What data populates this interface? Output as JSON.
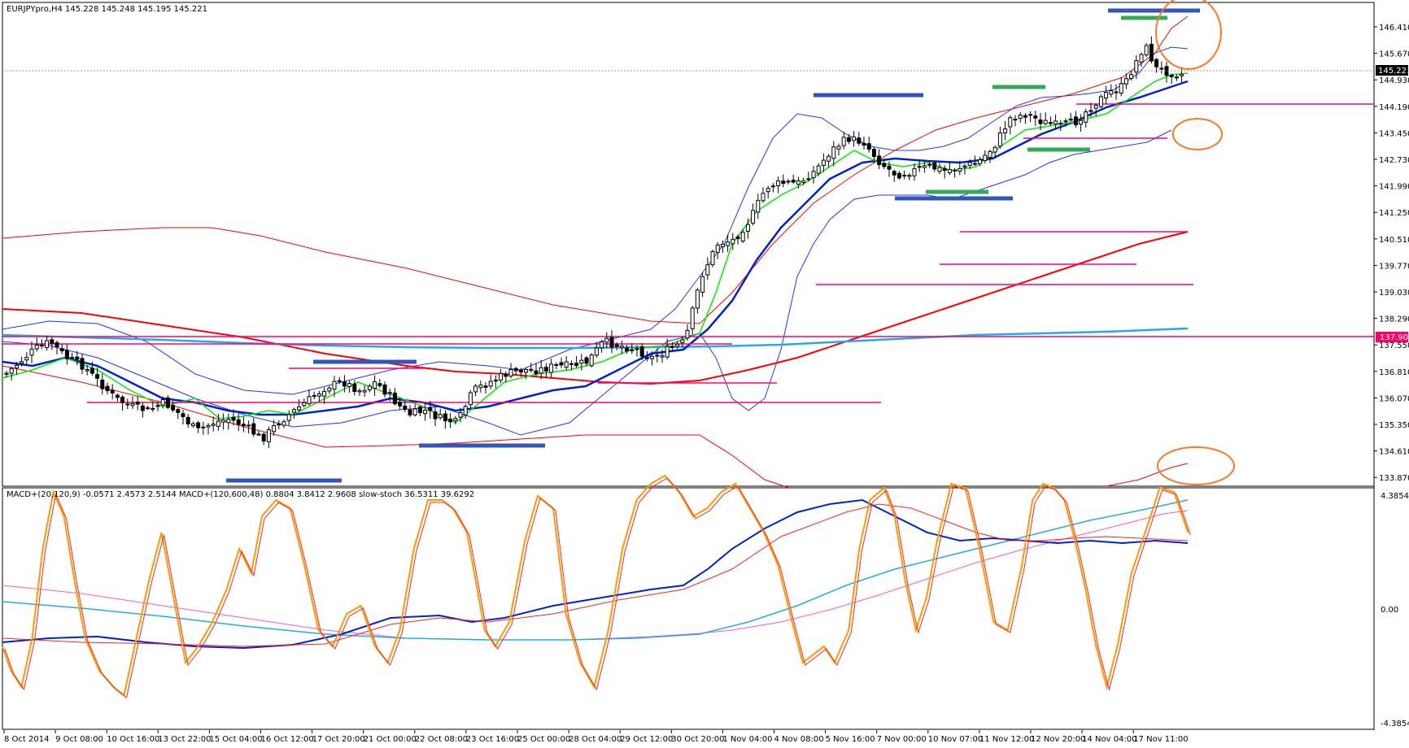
{
  "window": {
    "symbol_header": "EURJPYpro,H4  145.228 145.248 145.195 145.221"
  },
  "indicator_header": "MACD+(20,120,9) -0.0571 2.4573 2.5144  MACD+(120,600,48) 0.8804 3.8412 2.9608  slow-stoch 36.5311 39.6292",
  "price_axis": {
    "labels": [
      "146.410",
      "145.670",
      "144.930",
      "144.190",
      "143.450",
      "142.730",
      "141.990",
      "141.250",
      "140.510",
      "139.770",
      "139.030",
      "138.290",
      "137.550",
      "136.810",
      "136.070",
      "135.350",
      "134.610",
      "133.870"
    ],
    "current_price": "145.221",
    "horizontal_level_label": "137.900",
    "current_price_color": "#000000",
    "level_label_color": "#ff0066"
  },
  "indicator_axis": {
    "labels": [
      "4.3854",
      "0.00",
      "-4.3854"
    ]
  },
  "time_axis": {
    "labels": [
      "8 Oct 2014",
      "9 Oct 08:00",
      "10 Oct 16:00",
      "13 Oct 22:00",
      "15 Oct 04:00",
      "16 Oct 12:00",
      "17 Oct 20:00",
      "21 Oct 00:00",
      "22 Oct 08:00",
      "23 Oct 16:00",
      "25 Oct 00:00",
      "28 Oct 04:00",
      "29 Oct 12:00",
      "30 Oct 20:00",
      "1 Nov 04:00",
      "4 Nov 08:00",
      "5 Nov 16:00",
      "7 Nov 00:00",
      "10 Nov 07:00",
      "11 Nov 12:00",
      "12 Nov 20:00",
      "14 Nov 04:00",
      "17 Nov 11:00"
    ]
  },
  "colors": {
    "bull_candle": "#ffffff",
    "bear_candle": "#000000",
    "sma_green": "#00ee00",
    "ema_blue": "#0022cc",
    "ma_red": "#ff0000",
    "ma_cyan": "#22aaee",
    "bollinger_blue": "#2233ff",
    "support_resistance_magenta": "#ff0077",
    "marker_blue": "#3355bb",
    "marker_green": "#33aa55",
    "highlight_orange": "#ff7722",
    "stoch_orange": "#ff9900",
    "stoch_signal_red": "#ff2222",
    "macd_pink": "#ff55cc"
  }
}
